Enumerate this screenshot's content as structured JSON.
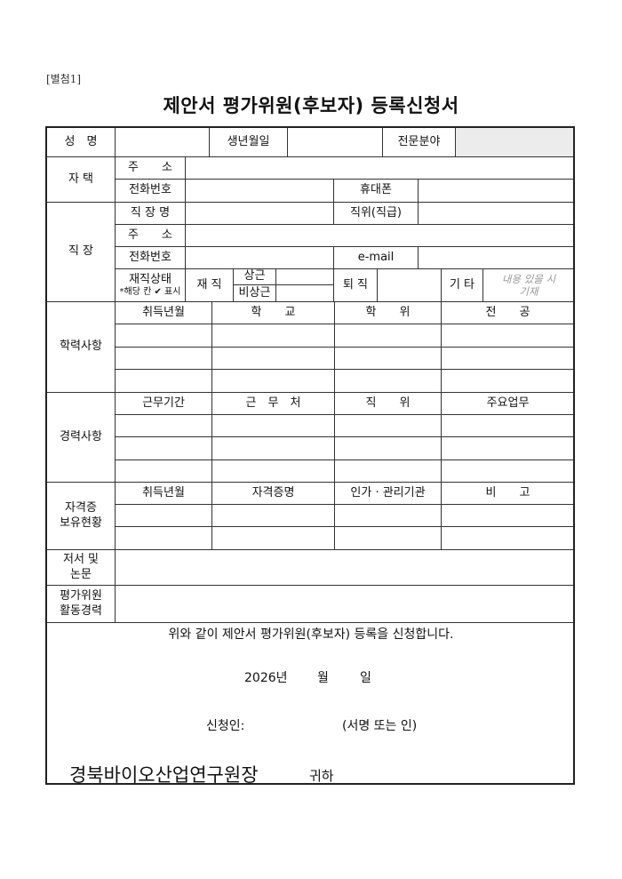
{
  "attachment_label": "[별첨1]",
  "title": "제안서 평가위원(후보자) 등록신청서",
  "personal": {
    "name_label": "성　명",
    "birth_label": "생년월일",
    "field_label": "전문분야"
  },
  "home": {
    "label": "자 택",
    "address_label": "주　　소",
    "phone_label": "전화번호",
    "mobile_label": "휴대폰"
  },
  "work": {
    "label": "직 장",
    "company_label": "직 장 명",
    "position_label": "직위(직급)",
    "address_label": "주　　소",
    "phone_label": "전화번호",
    "email_label": "e-mail",
    "status_label": "재직상태",
    "status_hint": "*해당 칸 ✔ 표시",
    "employed_label": "재 직",
    "fulltime_label": "상근",
    "parttime_label": "비상근",
    "retired_label": "퇴 직",
    "other_label": "기 타",
    "other_note": "내용 있을 시\n기재"
  },
  "education": {
    "label": "학력사항",
    "headers": [
      "취득년월",
      "학　　교",
      "학　　위",
      "전　　공"
    ]
  },
  "career": {
    "label": "경력사항",
    "headers": [
      "근무기간",
      "근　무　처",
      "직　　위",
      "주요업무"
    ]
  },
  "certificates": {
    "label": "자격증\n보유현황",
    "headers": [
      "취득년월",
      "자격증명",
      "인가 · 관리기관",
      "비　　고"
    ]
  },
  "publications": {
    "label": "저서 및\n논문"
  },
  "activity": {
    "label": "평가위원\n활동경력"
  },
  "declaration": {
    "statement": "위와 같이 제안서 평가위원(후보자) 등록을 신청합니다.",
    "year": "2026년",
    "month": "월",
    "day": "일",
    "applicant_label": "신청인:",
    "signature_label": "(서명 또는 인)",
    "recipient": "경북바이오산업연구원장",
    "honorific": "귀하"
  }
}
